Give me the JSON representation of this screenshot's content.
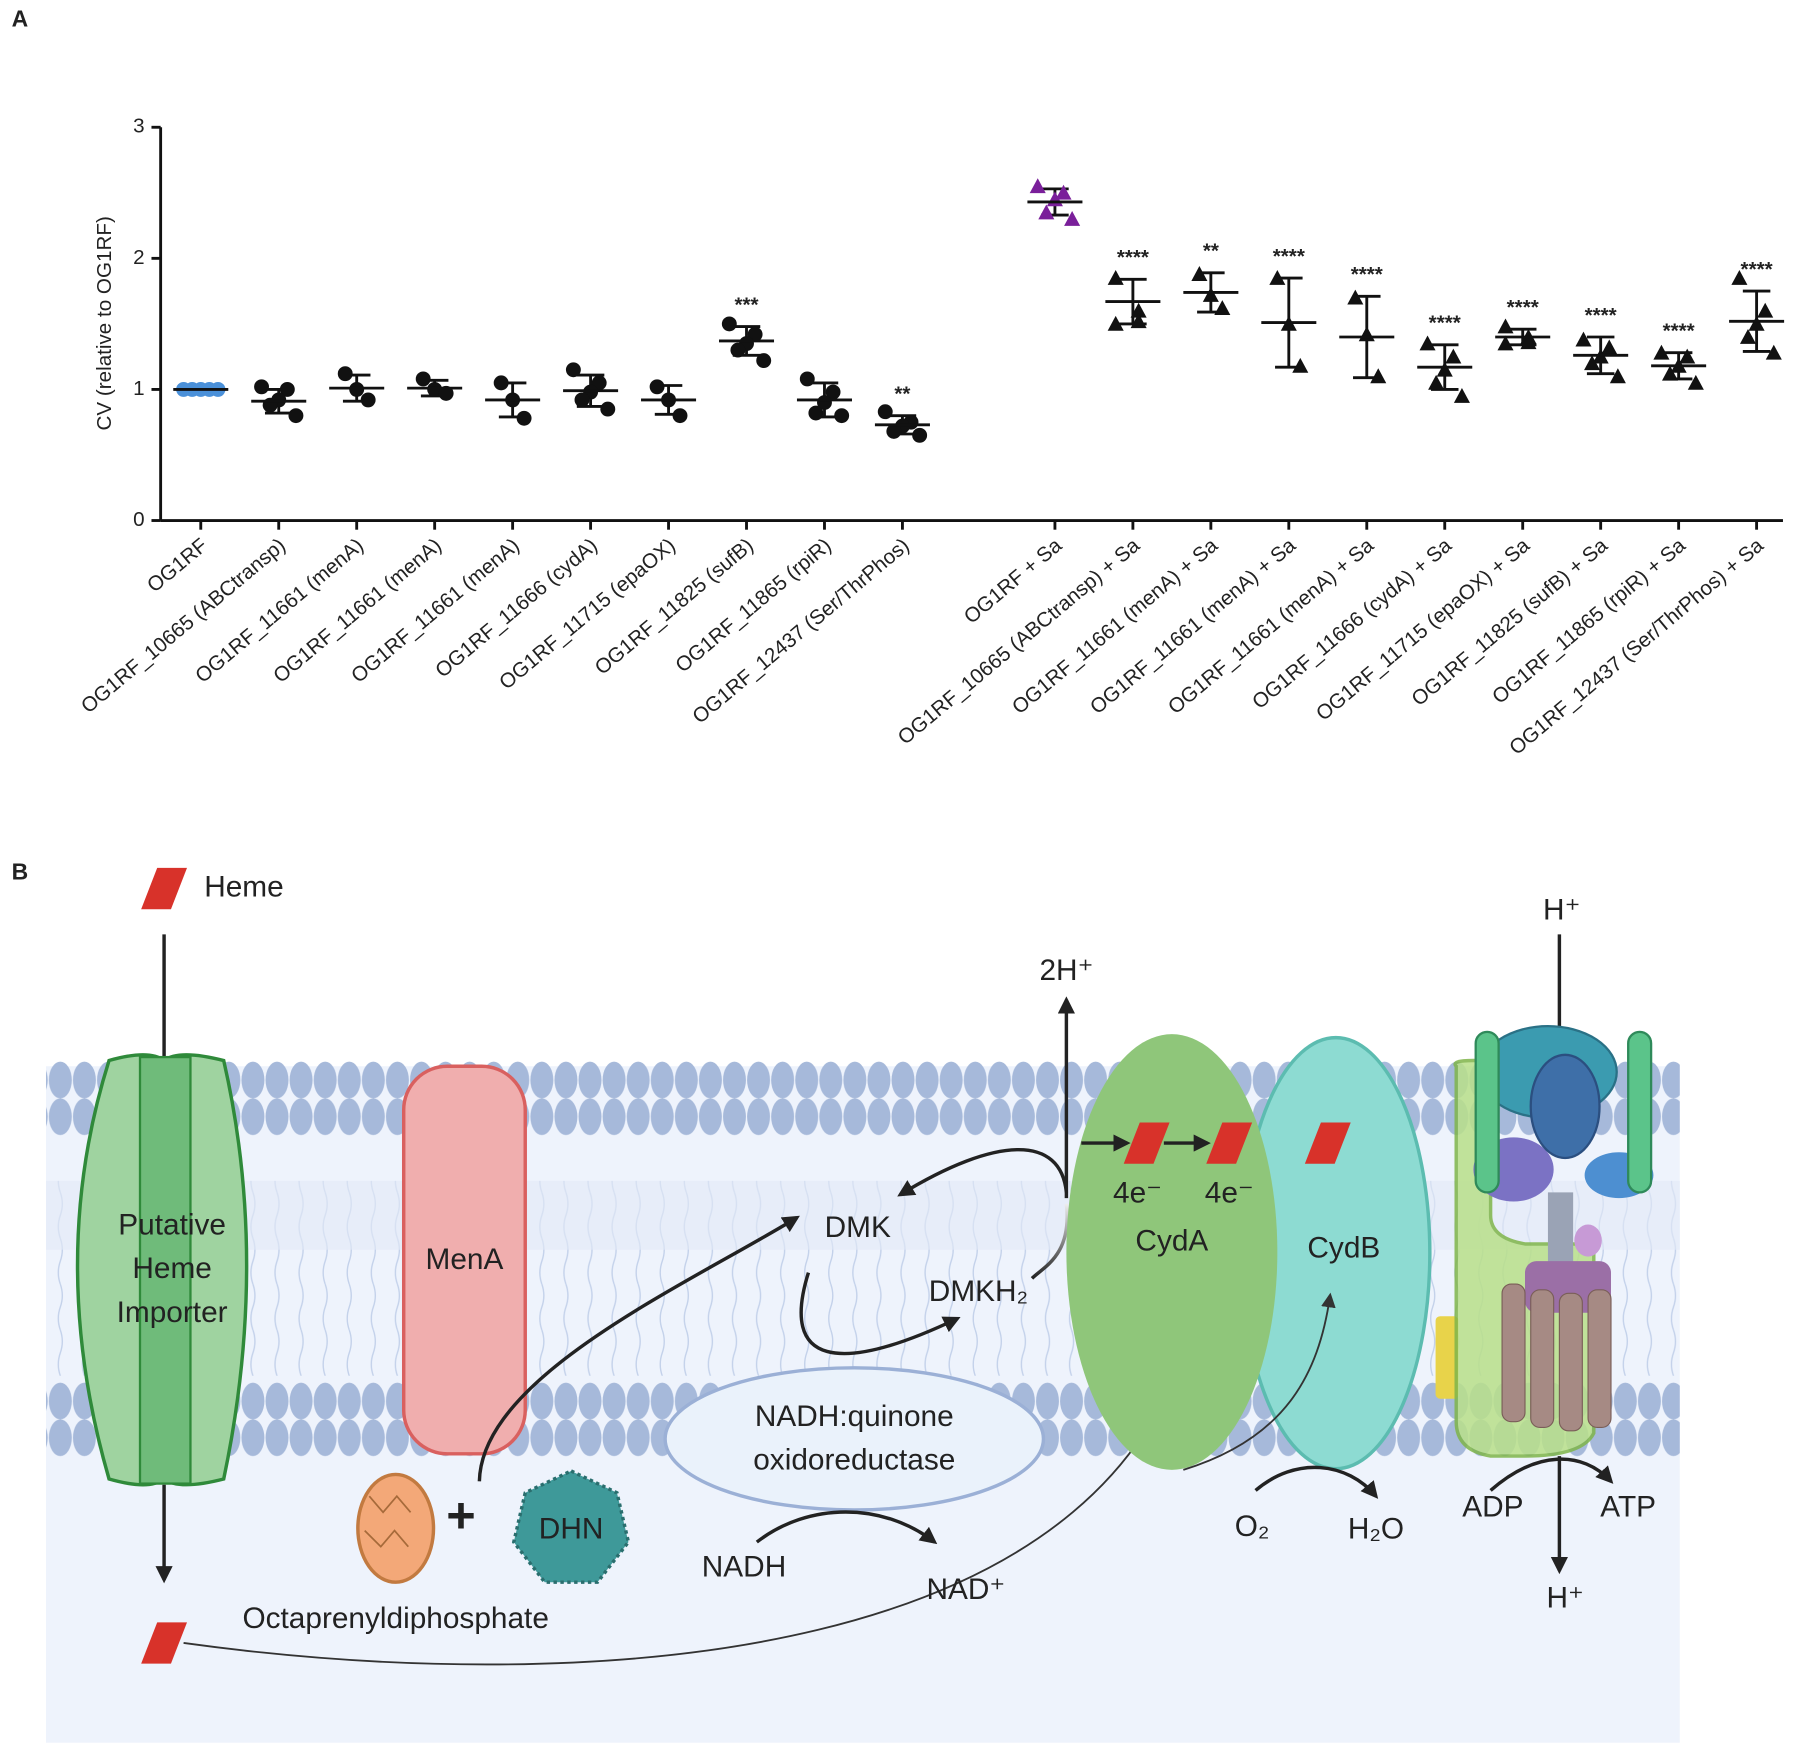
{
  "chart_data": {
    "type": "dot",
    "panel_label": "A",
    "ylabel": "CV (relative to OG1RF)",
    "categories": [
      "OG1RF",
      "OG1RF_10665 (ABCtransp)",
      "OG1RF_11661 (menA)",
      "OG1RF_11661 (menA)",
      "OG1RF_11661 (menA)",
      "OG1RF_11666 (cydA)",
      "OG1RF_11715 (epaOX)",
      "OG1RF_11825 (sufB)",
      "OG1RF_11865 (rpiR)",
      "OG1RF_12437 (Ser/ThrPhos)",
      "OG1RF + Sa",
      "OG1RF_10665 (ABCtransp) + Sa",
      "OG1RF_11661 (menA) + Sa",
      "OG1RF_11661 (menA) + Sa",
      "OG1RF_11661 (menA) + Sa",
      "OG1RF_11666 (cydA) + Sa",
      "OG1RF_11715 (epaOX) + Sa",
      "OG1RF_11825 (sufB) + Sa",
      "OG1RF_11865 (rpiR) + Sa",
      "OG1RF_12437 (Ser/ThrPhos) + Sa"
    ],
    "points": [
      [
        1,
        1,
        1,
        1,
        1
      ],
      [
        1.02,
        1.0,
        0.92,
        0.88,
        0.8
      ],
      [
        1.12,
        1.0,
        0.92
      ],
      [
        1.08,
        1.0,
        0.97
      ],
      [
        1.05,
        0.92,
        0.78
      ],
      [
        1.15,
        1.05,
        0.98,
        0.92,
        0.85
      ],
      [
        1.02,
        0.92,
        0.8
      ],
      [
        1.5,
        1.42,
        1.35,
        1.3,
        1.22
      ],
      [
        1.08,
        0.98,
        0.9,
        0.82,
        0.8
      ],
      [
        0.83,
        0.75,
        0.72,
        0.68,
        0.65
      ],
      [
        2.55,
        2.5,
        2.45,
        2.35,
        2.3
      ],
      [
        1.85,
        1.6,
        1.52,
        1.5
      ],
      [
        1.88,
        1.72,
        1.62
      ],
      [
        1.85,
        1.5,
        1.18
      ],
      [
        1.7,
        1.42,
        1.1
      ],
      [
        1.35,
        1.25,
        1.15,
        1.05,
        0.95
      ],
      [
        1.48,
        1.4,
        1.36,
        1.35
      ],
      [
        1.38,
        1.32,
        1.25,
        1.2,
        1.1
      ],
      [
        1.28,
        1.25,
        1.18,
        1.12,
        1.05
      ],
      [
        1.85,
        1.6,
        1.5,
        1.4,
        1.28
      ]
    ],
    "means": [
      1,
      0.91,
      1.01,
      1.01,
      0.92,
      0.99,
      0.92,
      1.37,
      0.92,
      0.73,
      2.43,
      1.67,
      1.74,
      1.51,
      1.4,
      1.17,
      1.4,
      1.26,
      1.18,
      1.52
    ],
    "sd": [
      0,
      0.09,
      0.1,
      0.06,
      0.13,
      0.12,
      0.11,
      0.11,
      0.13,
      0.07,
      0.1,
      0.17,
      0.15,
      0.34,
      0.31,
      0.17,
      0.06,
      0.14,
      0.1,
      0.23
    ],
    "annotations": [
      null,
      null,
      null,
      null,
      null,
      null,
      null,
      "***",
      null,
      "**",
      null,
      "****",
      "**",
      "****",
      "****",
      "****",
      "****",
      "****",
      "****",
      "****"
    ],
    "markers": [
      "circle",
      "circle",
      "circle",
      "circle",
      "circle",
      "circle",
      "circle",
      "circle",
      "circle",
      "circle",
      "triangle",
      "triangle",
      "triangle",
      "triangle",
      "triangle",
      "triangle",
      "triangle",
      "triangle",
      "triangle",
      "triangle"
    ],
    "colors": [
      "#4a90d9",
      "#111111",
      "#111111",
      "#111111",
      "#111111",
      "#111111",
      "#111111",
      "#111111",
      "#111111",
      "#111111",
      "#7a1f9a",
      "#111111",
      "#111111",
      "#111111",
      "#111111",
      "#111111",
      "#111111",
      "#111111",
      "#111111",
      "#111111"
    ],
    "ylim": [
      0,
      3
    ],
    "yticks": [
      0,
      1,
      2,
      3
    ]
  },
  "diagram": {
    "panel_label": "B",
    "heme": "Heme",
    "importer": [
      "Putative",
      "Heme",
      "Importer"
    ],
    "mena": "MenA",
    "octaprenyl": "Octaprenyldiphosphate",
    "dhn": "DHN",
    "dmk": "DMK",
    "dmkh2": "DMKH₂",
    "nadh_enzyme": [
      "NADH:quinone",
      "oxidoreductase"
    ],
    "nadh": "NADH",
    "nad": "NAD⁺",
    "proton_out": "2H⁺",
    "electrons": [
      "4e⁻",
      "4e⁻"
    ],
    "cyda": "CydA",
    "cydb": "CydB",
    "o2": "O₂",
    "h2o": "H₂O",
    "adp": "ADP",
    "atp": "ATP",
    "h_top": "H⁺",
    "h_bottom": "H⁺"
  }
}
